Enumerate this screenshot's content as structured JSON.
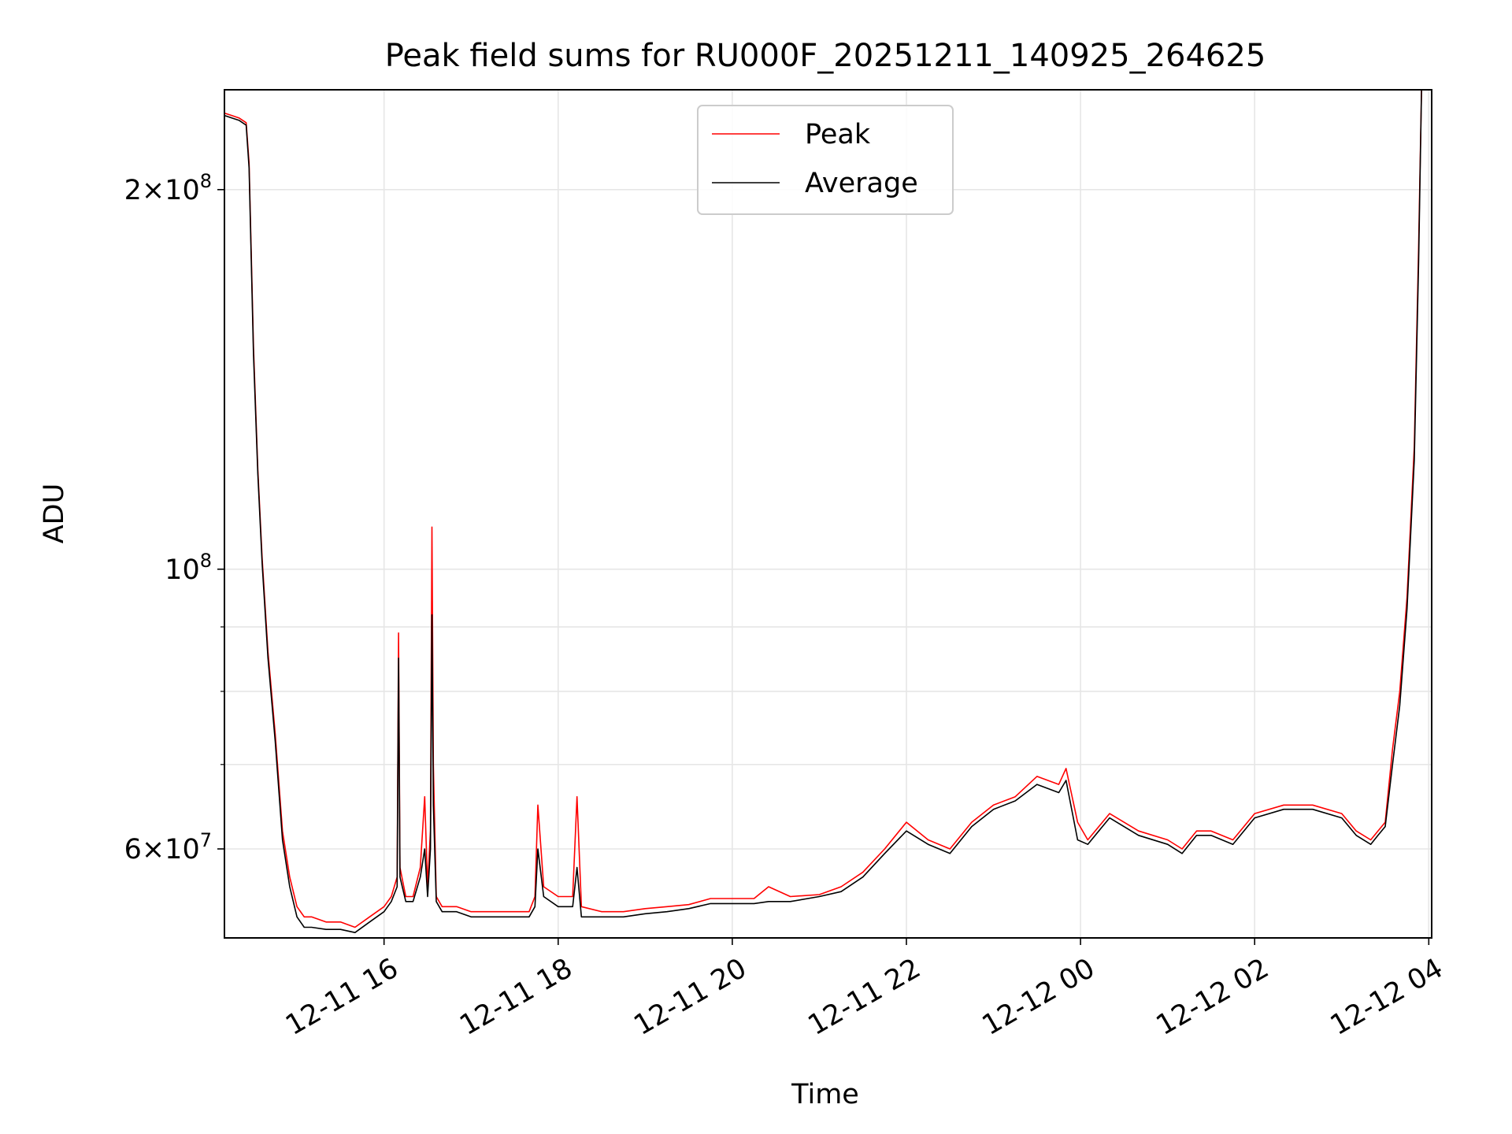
{
  "chart_data": {
    "type": "line",
    "title": "Peak field sums for RU000F_20251211_140925_264625",
    "xlabel": "Time",
    "ylabel": "ADU",
    "yscale": "log",
    "xlim": [
      "2025-12-11 14:10",
      "2025-12-12 04:02"
    ],
    "ylim": [
      51000000,
      240000000
    ],
    "x_ticks": [
      {
        "t": "2025-12-11 16:00",
        "label": "12-11 16"
      },
      {
        "t": "2025-12-11 18:00",
        "label": "12-11 18"
      },
      {
        "t": "2025-12-11 20:00",
        "label": "12-11 20"
      },
      {
        "t": "2025-12-11 22:00",
        "label": "12-11 22"
      },
      {
        "t": "2025-12-12 00:00",
        "label": "12-12 00"
      },
      {
        "t": "2025-12-12 02:00",
        "label": "12-12 02"
      },
      {
        "t": "2025-12-12 04:00",
        "label": "12-12 04"
      }
    ],
    "y_major_ticks": [
      {
        "v": 60000000,
        "mant": "6",
        "exp": "7"
      },
      {
        "v": 100000000,
        "mant": "",
        "exp": "8"
      },
      {
        "v": 200000000,
        "mant": "2",
        "exp": "8"
      }
    ],
    "y_minor_ticks": [
      70000000,
      80000000,
      90000000
    ],
    "grid": true,
    "legend_position": "top-center",
    "series": [
      {
        "name": "Peak",
        "color": "#ff0000",
        "x": [
          "2025-12-11 14:10",
          "2025-12-11 14:15",
          "2025-12-11 14:20",
          "2025-12-11 14:25",
          "2025-12-11 14:27",
          "2025-12-11 14:30",
          "2025-12-11 14:33",
          "2025-12-11 14:36",
          "2025-12-11 14:40",
          "2025-12-11 14:45",
          "2025-12-11 14:50",
          "2025-12-11 14:55",
          "2025-12-11 15:00",
          "2025-12-11 15:05",
          "2025-12-11 15:10",
          "2025-12-11 15:20",
          "2025-12-11 15:30",
          "2025-12-11 15:40",
          "2025-12-11 15:50",
          "2025-12-11 16:00",
          "2025-12-11 16:05",
          "2025-12-11 16:09",
          "2025-12-11 16:10",
          "2025-12-11 16:11",
          "2025-12-11 16:15",
          "2025-12-11 16:20",
          "2025-12-11 16:25",
          "2025-12-11 16:28",
          "2025-12-11 16:30",
          "2025-12-11 16:32",
          "2025-12-11 16:33",
          "2025-12-11 16:34",
          "2025-12-11 16:36",
          "2025-12-11 16:40",
          "2025-12-11 16:50",
          "2025-12-11 17:00",
          "2025-12-11 17:15",
          "2025-12-11 17:30",
          "2025-12-11 17:40",
          "2025-12-11 17:44",
          "2025-12-11 17:46",
          "2025-12-11 17:50",
          "2025-12-11 18:00",
          "2025-12-11 18:10",
          "2025-12-11 18:13",
          "2025-12-11 18:16",
          "2025-12-11 18:30",
          "2025-12-11 18:45",
          "2025-12-11 19:00",
          "2025-12-11 19:15",
          "2025-12-11 19:30",
          "2025-12-11 19:45",
          "2025-12-11 20:00",
          "2025-12-11 20:15",
          "2025-12-11 20:25",
          "2025-12-11 20:40",
          "2025-12-11 21:00",
          "2025-12-11 21:15",
          "2025-12-11 21:30",
          "2025-12-11 21:45",
          "2025-12-11 22:00",
          "2025-12-11 22:15",
          "2025-12-11 22:30",
          "2025-12-11 22:45",
          "2025-12-11 23:00",
          "2025-12-11 23:15",
          "2025-12-11 23:30",
          "2025-12-11 23:45",
          "2025-12-11 23:50",
          "2025-12-11 23:58",
          "2025-12-12 00:05",
          "2025-12-12 00:20",
          "2025-12-12 00:40",
          "2025-12-12 01:00",
          "2025-12-12 01:10",
          "2025-12-12 01:20",
          "2025-12-12 01:30",
          "2025-12-12 01:45",
          "2025-12-12 02:00",
          "2025-12-12 02:20",
          "2025-12-12 02:40",
          "2025-12-12 03:00",
          "2025-12-12 03:10",
          "2025-12-12 03:20",
          "2025-12-12 03:25",
          "2025-12-12 03:30",
          "2025-12-12 03:35",
          "2025-12-12 03:40",
          "2025-12-12 03:45",
          "2025-12-12 03:50",
          "2025-12-12 03:53",
          "2025-12-12 03:55"
        ],
        "values": [
          230000000,
          229000000,
          228000000,
          226000000,
          210000000,
          150000000,
          120000000,
          102000000,
          86000000,
          74000000,
          62000000,
          57000000,
          54000000,
          53000000,
          53000000,
          52500000,
          52500000,
          52000000,
          53000000,
          54000000,
          55000000,
          57000000,
          89000000,
          58000000,
          55000000,
          55000000,
          58000000,
          66000000,
          56000000,
          62000000,
          108000000,
          70000000,
          55000000,
          54000000,
          54000000,
          53500000,
          53500000,
          53500000,
          53500000,
          55000000,
          65000000,
          56000000,
          55000000,
          55000000,
          66000000,
          54000000,
          53500000,
          53500000,
          53800000,
          54000000,
          54200000,
          54800000,
          54800000,
          54800000,
          56000000,
          55000000,
          55200000,
          56000000,
          57500000,
          60000000,
          63000000,
          61000000,
          60000000,
          63000000,
          65000000,
          66000000,
          68500000,
          67500000,
          69500000,
          63000000,
          61000000,
          64000000,
          62000000,
          61000000,
          60000000,
          62000000,
          62000000,
          61000000,
          64000000,
          65000000,
          65000000,
          64000000,
          62000000,
          61000000,
          62000000,
          63000000,
          72000000,
          80000000,
          95000000,
          125000000,
          180000000,
          240000000
        ]
      },
      {
        "name": "Average",
        "color": "#000000",
        "x": [
          "2025-12-11 14:10",
          "2025-12-11 14:15",
          "2025-12-11 14:20",
          "2025-12-11 14:25",
          "2025-12-11 14:27",
          "2025-12-11 14:30",
          "2025-12-11 14:33",
          "2025-12-11 14:36",
          "2025-12-11 14:40",
          "2025-12-11 14:45",
          "2025-12-11 14:50",
          "2025-12-11 14:55",
          "2025-12-11 15:00",
          "2025-12-11 15:05",
          "2025-12-11 15:10",
          "2025-12-11 15:20",
          "2025-12-11 15:30",
          "2025-12-11 15:40",
          "2025-12-11 15:50",
          "2025-12-11 16:00",
          "2025-12-11 16:05",
          "2025-12-11 16:09",
          "2025-12-11 16:10",
          "2025-12-11 16:11",
          "2025-12-11 16:15",
          "2025-12-11 16:20",
          "2025-12-11 16:25",
          "2025-12-11 16:28",
          "2025-12-11 16:30",
          "2025-12-11 16:32",
          "2025-12-11 16:33",
          "2025-12-11 16:34",
          "2025-12-11 16:36",
          "2025-12-11 16:40",
          "2025-12-11 16:50",
          "2025-12-11 17:00",
          "2025-12-11 17:15",
          "2025-12-11 17:30",
          "2025-12-11 17:40",
          "2025-12-11 17:44",
          "2025-12-11 17:46",
          "2025-12-11 17:50",
          "2025-12-11 18:00",
          "2025-12-11 18:10",
          "2025-12-11 18:13",
          "2025-12-11 18:16",
          "2025-12-11 18:30",
          "2025-12-11 18:45",
          "2025-12-11 19:00",
          "2025-12-11 19:15",
          "2025-12-11 19:30",
          "2025-12-11 19:45",
          "2025-12-11 20:00",
          "2025-12-11 20:15",
          "2025-12-11 20:25",
          "2025-12-11 20:40",
          "2025-12-11 21:00",
          "2025-12-11 21:15",
          "2025-12-11 21:30",
          "2025-12-11 21:45",
          "2025-12-11 22:00",
          "2025-12-11 22:15",
          "2025-12-11 22:30",
          "2025-12-11 22:45",
          "2025-12-11 23:00",
          "2025-12-11 23:15",
          "2025-12-11 23:30",
          "2025-12-11 23:45",
          "2025-12-11 23:50",
          "2025-12-11 23:58",
          "2025-12-12 00:05",
          "2025-12-12 00:20",
          "2025-12-12 00:40",
          "2025-12-12 01:00",
          "2025-12-12 01:10",
          "2025-12-12 01:20",
          "2025-12-12 01:30",
          "2025-12-12 01:45",
          "2025-12-12 02:00",
          "2025-12-12 02:20",
          "2025-12-12 02:40",
          "2025-12-12 03:00",
          "2025-12-12 03:10",
          "2025-12-12 03:20",
          "2025-12-12 03:25",
          "2025-12-12 03:30",
          "2025-12-12 03:35",
          "2025-12-12 03:40",
          "2025-12-12 03:45",
          "2025-12-12 03:50",
          "2025-12-12 03:53",
          "2025-12-12 03:55"
        ],
        "values": [
          229000000,
          228000000,
          227000000,
          225000000,
          208000000,
          148000000,
          119000000,
          101000000,
          85000000,
          73000000,
          61000000,
          56000000,
          53000000,
          52000000,
          52000000,
          51800000,
          51800000,
          51500000,
          52500000,
          53500000,
          54500000,
          56000000,
          85000000,
          57000000,
          54500000,
          54500000,
          57000000,
          60000000,
          55000000,
          60000000,
          92000000,
          65000000,
          54500000,
          53500000,
          53500000,
          53000000,
          53000000,
          53000000,
          53000000,
          54000000,
          60000000,
          55000000,
          54000000,
          54000000,
          58000000,
          53000000,
          53000000,
          53000000,
          53300000,
          53500000,
          53800000,
          54300000,
          54300000,
          54300000,
          54500000,
          54500000,
          55000000,
          55500000,
          57000000,
          59500000,
          62000000,
          60500000,
          59500000,
          62500000,
          64500000,
          65500000,
          67500000,
          66500000,
          68000000,
          61000000,
          60500000,
          63500000,
          61500000,
          60500000,
          59500000,
          61500000,
          61500000,
          60500000,
          63500000,
          64500000,
          64500000,
          63500000,
          61500000,
          60500000,
          61500000,
          62500000,
          70000000,
          78000000,
          93000000,
          122000000,
          175000000,
          240000000
        ]
      }
    ]
  }
}
